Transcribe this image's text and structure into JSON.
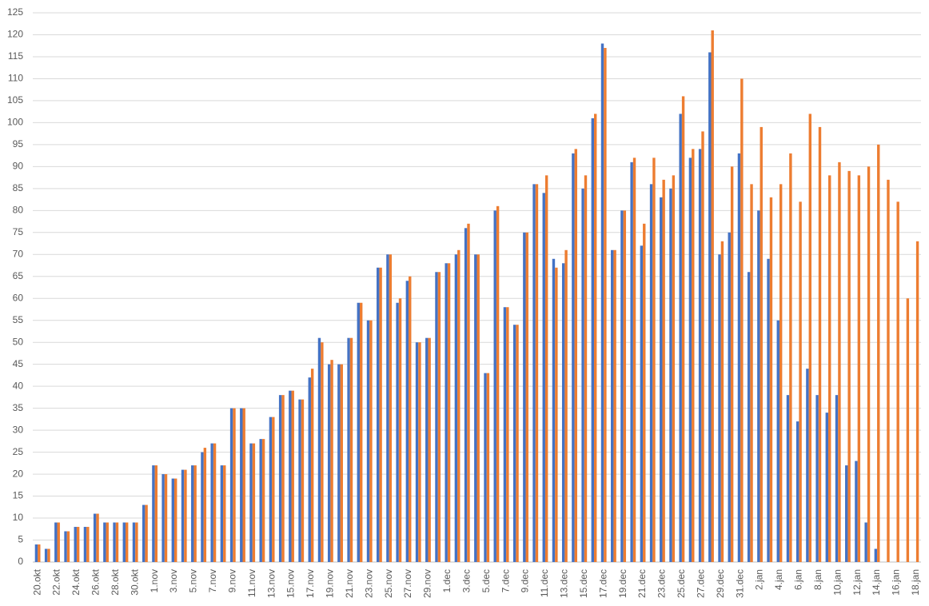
{
  "chart_data": {
    "type": "bar",
    "categories": [
      "20.okt",
      null,
      "22.okt",
      null,
      "24.okt",
      null,
      "26.okt",
      null,
      "28.okt",
      null,
      "30.okt",
      null,
      "1.nov",
      null,
      "3.nov",
      null,
      "5.nov",
      null,
      "7.nov",
      null,
      "9.nov",
      null,
      "11.nov",
      null,
      "13.nov",
      null,
      "15.nov",
      null,
      "17.nov",
      null,
      "19.nov",
      null,
      "21.nov",
      null,
      "23.nov",
      null,
      "25.nov",
      null,
      "27.nov",
      null,
      "29.nov",
      null,
      "1.dec",
      null,
      "3.dec",
      null,
      "5.dec",
      null,
      "7.dec",
      null,
      "9.dec",
      null,
      "11.dec",
      null,
      "13.dec",
      null,
      "15.dec",
      null,
      "17.dec",
      null,
      "19.dec",
      null,
      "21.dec",
      null,
      "23.dec",
      null,
      "25.dec",
      null,
      "27.dec",
      null,
      "29.dec",
      null,
      "31.dec",
      null,
      "2.jan",
      null,
      "4.jan",
      null,
      "6.jan",
      null,
      "8.jan",
      null,
      "10.jan",
      null,
      "12.jan",
      null,
      "14.jan",
      null,
      "16.jan",
      null,
      "18.jan"
    ],
    "series": [
      {
        "color": "#4472c4",
        "values": [
          4,
          3,
          9,
          7,
          8,
          8,
          11,
          9,
          9,
          9,
          9,
          13,
          22,
          20,
          19,
          21,
          22,
          25,
          27,
          22,
          35,
          35,
          27,
          28,
          33,
          38,
          39,
          37,
          42,
          51,
          45,
          45,
          51,
          59,
          55,
          67,
          70,
          59,
          64,
          50,
          51,
          66,
          68,
          70,
          76,
          70,
          43,
          80,
          58,
          54,
          75,
          86,
          84,
          69,
          68,
          93,
          85,
          101,
          118,
          71,
          80,
          91,
          72,
          86,
          83,
          85,
          102,
          92,
          94,
          116,
          70,
          75,
          93,
          66,
          80,
          69,
          55,
          38,
          32,
          44,
          38,
          34,
          38,
          22,
          23,
          9,
          3,
          null,
          null,
          null,
          null
        ]
      },
      {
        "color": "#ed7d31",
        "values": [
          4,
          3,
          9,
          7,
          8,
          8,
          11,
          9,
          9,
          9,
          9,
          13,
          22,
          20,
          19,
          21,
          22,
          26,
          27,
          22,
          35,
          35,
          27,
          28,
          33,
          38,
          39,
          37,
          44,
          50,
          46,
          45,
          51,
          59,
          55,
          67,
          70,
          60,
          65,
          50,
          51,
          66,
          68,
          71,
          77,
          70,
          43,
          81,
          58,
          54,
          75,
          86,
          88,
          67,
          71,
          94,
          88,
          102,
          117,
          71,
          80,
          92,
          77,
          92,
          87,
          88,
          106,
          94,
          98,
          121,
          73,
          90,
          110,
          86,
          99,
          83,
          86,
          93,
          82,
          102,
          99,
          88,
          91,
          89,
          88,
          90,
          95,
          87,
          82,
          60,
          73
        ]
      }
    ],
    "ylim": [
      0,
      125
    ],
    "yticks": [
      0,
      5,
      10,
      15,
      20,
      25,
      30,
      35,
      40,
      45,
      50,
      55,
      60,
      65,
      70,
      75,
      80,
      85,
      90,
      95,
      100,
      105,
      110,
      115,
      120,
      125
    ],
    "grid": true
  }
}
